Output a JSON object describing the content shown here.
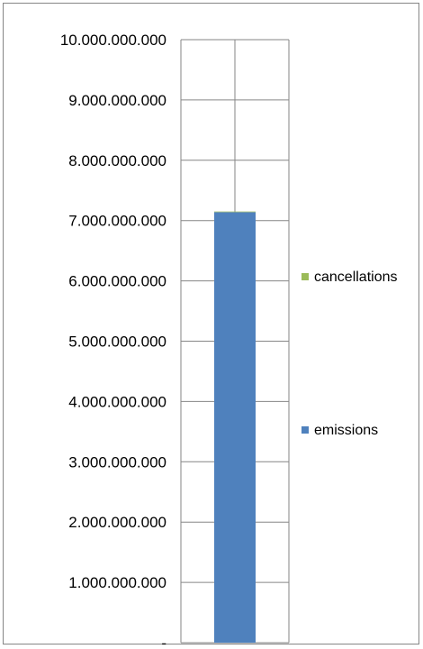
{
  "chart_data": {
    "type": "bar",
    "stacked": true,
    "categories": [
      ""
    ],
    "series": [
      {
        "name": "emissions",
        "values": [
          7140000000
        ],
        "color": "#4f81bd"
      },
      {
        "name": "cancellations",
        "values": [
          10000000
        ],
        "color": "#9bbb59"
      }
    ],
    "ylim": [
      0,
      10000000000
    ],
    "yticks": [
      0,
      1000000000,
      2000000000,
      3000000000,
      4000000000,
      5000000000,
      6000000000,
      7000000000,
      8000000000,
      9000000000,
      10000000000
    ],
    "ytick_labels": [
      "-",
      "1.000.000.000",
      "2.000.000.000",
      "3.000.000.000",
      "4.000.000.000",
      "5.000.000.000",
      "6.000.000.000",
      "7.000.000.000",
      "8.000.000.000",
      "9.000.000.000",
      "10.000.000.000"
    ],
    "grid": true,
    "legend_position": "right",
    "title": "",
    "xlabel": "",
    "ylabel": ""
  }
}
